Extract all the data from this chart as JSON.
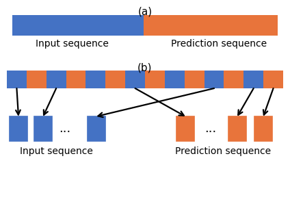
{
  "blue": "#4472C4",
  "orange": "#E8743B",
  "bg": "#ffffff",
  "label_a": "(a)",
  "label_b": "(b)",
  "input_seq_label": "Input sequence",
  "pred_seq_label": "Prediction sequence",
  "fig_width": 4.24,
  "fig_height": 3.14,
  "dpi": 100
}
